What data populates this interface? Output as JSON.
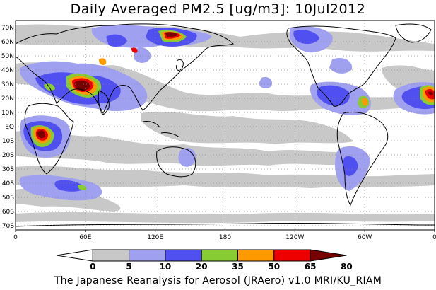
{
  "title": "Daily Averaged PM2.5 [ug/m3]: 10Jul2012",
  "footer": "The Japanese Reanalysis for Aerosol (JRAero) v1.0 MRI/KU_RIAM",
  "map": {
    "lon_labels": [
      "0",
      "60E",
      "120E",
      "180",
      "120W",
      "60W",
      "0"
    ],
    "lat_labels": [
      "70N",
      "60N",
      "50N",
      "40N",
      "30N",
      "20N",
      "10N",
      "EQ",
      "10S",
      "20S",
      "30S",
      "40S",
      "50S",
      "60S",
      "70S"
    ]
  },
  "colorbar": {
    "bounds": [
      "0",
      "5",
      "10",
      "20",
      "35",
      "50",
      "65",
      "80"
    ],
    "colors": [
      "#ffffff",
      "#c8c8c8",
      "#a0a0f0",
      "#5050f0",
      "#88cc33",
      "#ff9900",
      "#ee0000",
      "#770000"
    ]
  },
  "colors": {
    "land_outline": "#000000",
    "grid": "#888888"
  }
}
